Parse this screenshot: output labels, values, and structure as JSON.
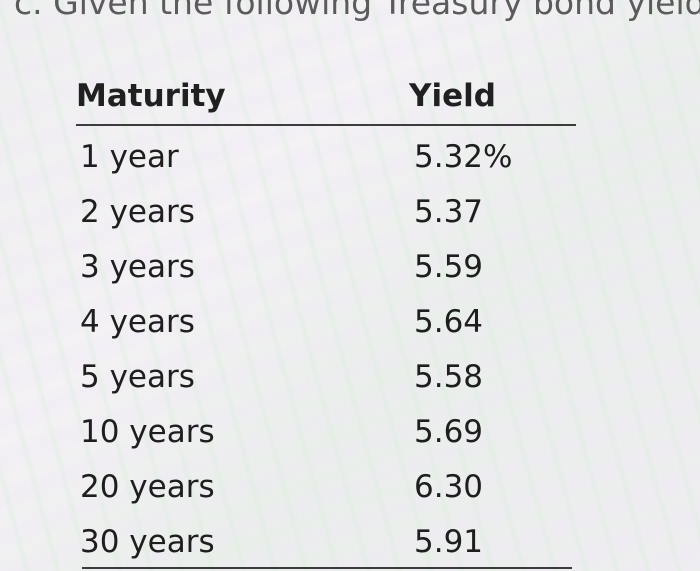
{
  "heading": "c. Given the following Treasury bond yield",
  "table": {
    "headers": {
      "maturity": "Maturity",
      "yield": "Yield"
    },
    "rows": [
      {
        "maturity": "1 year",
        "yield": "5.32%"
      },
      {
        "maturity": "2 years",
        "yield": "5.37"
      },
      {
        "maturity": "3 years",
        "yield": "5.59"
      },
      {
        "maturity": "4 years",
        "yield": "5.64"
      },
      {
        "maturity": "5 years",
        "yield": "5.58"
      },
      {
        "maturity": "10 years",
        "yield": "5.69"
      },
      {
        "maturity": "20 years",
        "yield": "6.30"
      },
      {
        "maturity": "30 years",
        "yield": "5.91"
      }
    ]
  }
}
